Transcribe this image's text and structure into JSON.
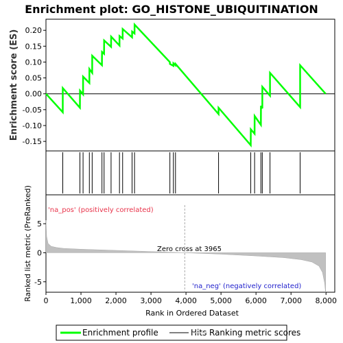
{
  "chart_data": {
    "type": "line",
    "title": "Enrichment plot: GO_HISTONE_UBIQUITINATION",
    "es_panel": {
      "ylabel": "Enrichment score (ES)",
      "ylim": [
        -0.18,
        0.235
      ],
      "yticks": [
        0.2,
        0.15,
        0.1,
        0.05,
        0.0,
        -0.05,
        -0.1,
        -0.15
      ],
      "ytick_labels": [
        "0.20",
        "0.15",
        "0.10",
        "0.05",
        "0.00",
        "-0.05",
        "-0.10",
        "-0.15"
      ],
      "x": [
        0,
        480,
        481,
        970,
        971,
        1060,
        1061,
        1240,
        1241,
        1320,
        1321,
        1600,
        1601,
        1660,
        1661,
        1860,
        1861,
        2100,
        2101,
        2190,
        2191,
        2460,
        2461,
        2530,
        2531,
        3540,
        3541,
        3640,
        3641,
        3700,
        3701,
        4930,
        4931,
        5850,
        5851,
        5960,
        5961,
        6140,
        6141,
        6180,
        6181,
        6400,
        6401,
        7260,
        7261,
        7990
      ],
      "y": [
        0.0,
        -0.058,
        0.018,
        -0.044,
        0.01,
        -0.002,
        0.054,
        0.034,
        0.078,
        0.066,
        0.12,
        0.09,
        0.132,
        0.126,
        0.168,
        0.148,
        0.18,
        0.152,
        0.182,
        0.174,
        0.204,
        0.178,
        0.196,
        0.19,
        0.218,
        0.1,
        0.094,
        0.088,
        0.096,
        0.09,
        0.094,
        -0.064,
        -0.044,
        -0.162,
        -0.112,
        -0.126,
        -0.07,
        -0.098,
        -0.038,
        -0.046,
        0.022,
        -0.006,
        0.066,
        -0.042,
        0.09,
        0.0
      ],
      "series_color": "#00ff00"
    },
    "hits": {
      "positions": [
        480,
        970,
        1060,
        1240,
        1320,
        1600,
        1660,
        1860,
        2100,
        2190,
        2460,
        2530,
        3540,
        3640,
        3700,
        4930,
        5850,
        5960,
        6140,
        6180,
        6400,
        7260
      ]
    },
    "color_bar": {
      "segments": [
        {
          "from": 0,
          "to": 1300,
          "color": "#f0505a"
        },
        {
          "from": 1300,
          "to": 2200,
          "color": "#f4737f"
        },
        {
          "from": 2200,
          "to": 3050,
          "color": "#f69aa4"
        },
        {
          "from": 3050,
          "to": 3965,
          "color": "#f8c4e0"
        },
        {
          "from": 3965,
          "to": 5050,
          "color": "#dcdcf6"
        },
        {
          "from": 5050,
          "to": 5900,
          "color": "#c0c0f0"
        },
        {
          "from": 5900,
          "to": 6450,
          "color": "#8a8aee"
        },
        {
          "from": 6450,
          "to": 7650,
          "color": "#6a5ae6"
        },
        {
          "from": 7650,
          "to": 7990,
          "color": "#2e12cc"
        }
      ]
    },
    "metric_panel": {
      "ylabel": "Ranked list metric (PreRanked)",
      "ylim": [
        -6.8,
        8.2
      ],
      "yticks": [
        5,
        0,
        -5
      ],
      "ytick_labels": [
        "5",
        "0",
        "-5"
      ],
      "curve_x": [
        0,
        20,
        60,
        150,
        300,
        500,
        1000,
        2000,
        3000,
        3965,
        5000,
        6000,
        6800,
        7300,
        7600,
        7800,
        7900,
        7960,
        7990
      ],
      "curve_y": [
        5.6,
        2.8,
        1.6,
        1.1,
        0.9,
        0.75,
        0.6,
        0.4,
        0.2,
        0.0,
        -0.25,
        -0.55,
        -0.85,
        -1.2,
        -1.6,
        -2.3,
        -3.4,
        -5.2,
        -7.0
      ],
      "zero_cross": 3965,
      "zero_cross_label": "Zero cross at 3965",
      "pos_label": "'na_pos' (positively correlated)",
      "neg_label": "'na_neg' (negatively correlated)"
    },
    "xaxis": {
      "xlabel": "Rank in Ordered Dataset",
      "xlim": [
        0,
        8250
      ],
      "xticks": [
        0,
        1000,
        2000,
        3000,
        4000,
        5000,
        6000,
        7000,
        8000
      ],
      "xtick_labels": [
        "0",
        "1,000",
        "2,000",
        "3,000",
        "4,000",
        "5,000",
        "6,000",
        "7,000",
        "8,000"
      ]
    },
    "legend": {
      "items": [
        {
          "label": "Enrichment profile",
          "color": "#00ff00"
        },
        {
          "label": "Hits",
          "color": "#808080"
        },
        {
          "label": "Ranking metric scores",
          "color": "#d3d3d3"
        }
      ]
    }
  }
}
